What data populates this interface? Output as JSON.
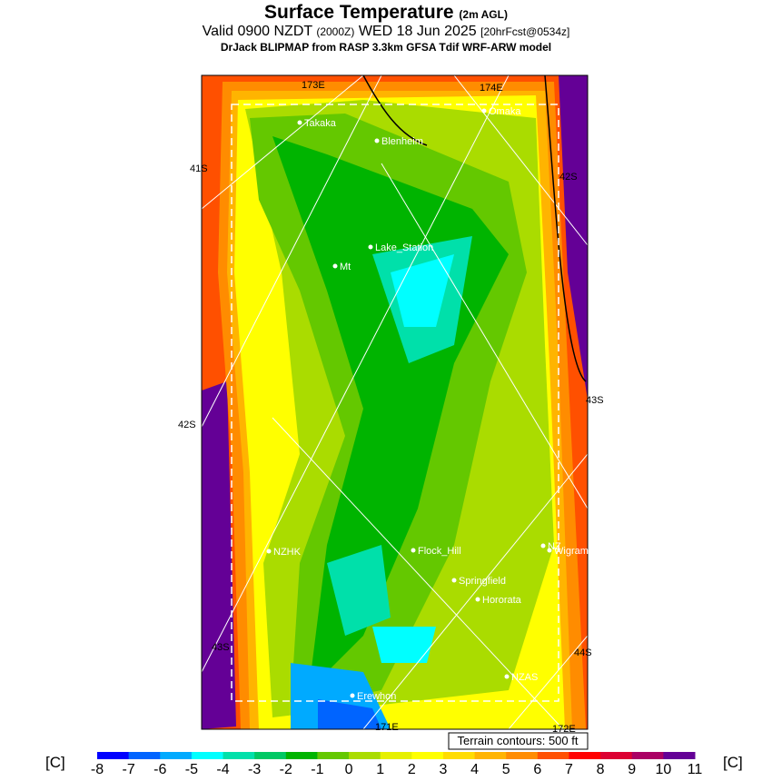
{
  "header": {
    "title": "Surface Temperature",
    "title_note": "(2m AGL)",
    "valid": "Valid 0900 NZDT",
    "zulu": "(2000Z)",
    "date": "WED 18 Jun 2025",
    "forecast": "[20hrFcst@0534z]",
    "model": "DrJack BLIPMAP from RASP 3.3km GFSA Tdif WRF-ARW model"
  },
  "places": [
    "Takaka",
    "Blenheim",
    "Omaka",
    "Lake_Station",
    "Mt",
    "NZHK",
    "Flock_Hill",
    "Springfield",
    "Hororata",
    "NZ",
    "Wigram",
    "NZAS",
    "Erewhon"
  ],
  "grid_labels": [
    "41S",
    "42S",
    "43S",
    "42S",
    "43S",
    "44S",
    "173E",
    "174E",
    "171E",
    "172E"
  ],
  "terrain_note": "Terrain contours: 500 ft",
  "colorbar": {
    "unit_left": "[C]",
    "unit_right": "[C]",
    "ticks": [
      -8,
      -7,
      -6,
      -5,
      -4,
      -3,
      -2,
      -1,
      0,
      1,
      2,
      3,
      4,
      5,
      6,
      7,
      8,
      9,
      10,
      11
    ],
    "colors": [
      "#0000ff",
      "#0064ff",
      "#00aaff",
      "#00ffff",
      "#00e0aa",
      "#00c864",
      "#00b400",
      "#64c800",
      "#aadc00",
      "#e6f000",
      "#ffff00",
      "#ffdc00",
      "#ffb400",
      "#ff8c00",
      "#ff5000",
      "#ff0000",
      "#dc0032",
      "#aa0064",
      "#640096"
    ]
  }
}
